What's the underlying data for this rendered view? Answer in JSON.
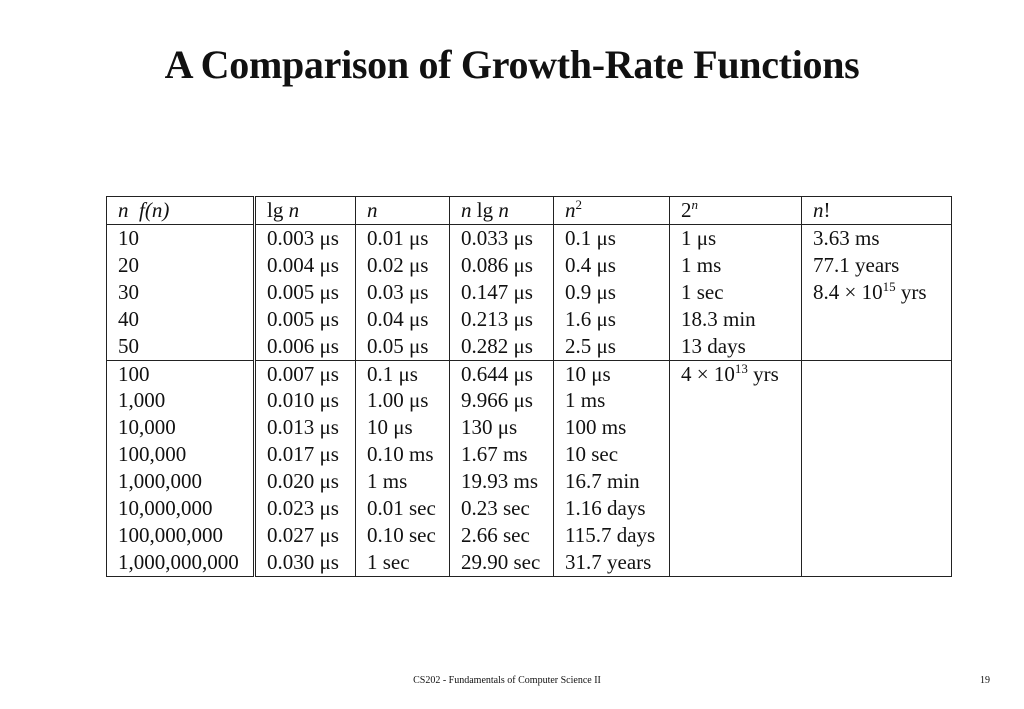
{
  "title": "A Comparison of Growth-Rate Functions",
  "table": {
    "headers": {
      "col0_a": "n",
      "col0_b": "f(n)",
      "col1_a": "lg",
      "col1_b": "n",
      "col2": "n",
      "col3_a": "n",
      "col3_b": "lg",
      "col3_c": "n",
      "col4_base": "n",
      "col4_exp": "2",
      "col5_base": "2",
      "col5_exp": "n",
      "col6_a": "n",
      "col6_b": "!"
    },
    "rows": [
      [
        "10",
        "0.003 μs",
        "0.01 μs",
        "0.033 μs",
        "0.1 μs",
        "1 μs",
        "3.63 ms"
      ],
      [
        "20",
        "0.004 μs",
        "0.02 μs",
        "0.086 μs",
        "0.4 μs",
        "1 ms",
        "77.1 years"
      ],
      [
        "30",
        "0.005 μs",
        "0.03 μs",
        "0.147 μs",
        "0.9 μs",
        "1 sec",
        ""
      ],
      [
        "40",
        "0.005 μs",
        "0.04 μs",
        "0.213 μs",
        "1.6 μs",
        "18.3 min",
        ""
      ],
      [
        "50",
        "0.006 μs",
        "0.05 μs",
        "0.282 μs",
        "2.5 μs",
        "13 days",
        ""
      ],
      [
        "100",
        "0.007 μs",
        "0.1 μs",
        "0.644 μs",
        "10 μs",
        "",
        ""
      ],
      [
        "1,000",
        "0.010 μs",
        "1.00 μs",
        "9.966 μs",
        "1 ms",
        "",
        ""
      ],
      [
        "10,000",
        "0.013 μs",
        "10 μs",
        "130 μs",
        "100 ms",
        "",
        ""
      ],
      [
        "100,000",
        "0.017 μs",
        "0.10 ms",
        "1.67 ms",
        "10 sec",
        "",
        ""
      ],
      [
        "1,000,000",
        "0.020 μs",
        "1 ms",
        "19.93 ms",
        "16.7 min",
        "",
        ""
      ],
      [
        "10,000,000",
        "0.023 μs",
        "0.01 sec",
        "0.23 sec",
        "1.16 days",
        "",
        ""
      ],
      [
        "100,000,000",
        "0.027 μs",
        "0.10 sec",
        "2.66 sec",
        "115.7 days",
        "",
        ""
      ],
      [
        "1,000,000,000",
        "0.030 μs",
        "1 sec",
        "29.90 sec",
        "31.7 years",
        "",
        ""
      ]
    ],
    "special_cells": {
      "nfact_30": {
        "prefix": "8.4 × 10",
        "exp": "15",
        "suffix": " yrs"
      },
      "pow2_100": {
        "prefix": "4 × 10",
        "exp": "13",
        "suffix": " yrs"
      }
    }
  },
  "footer": {
    "course": "CS202 - Fundamentals of Computer Science II",
    "page": "19"
  }
}
